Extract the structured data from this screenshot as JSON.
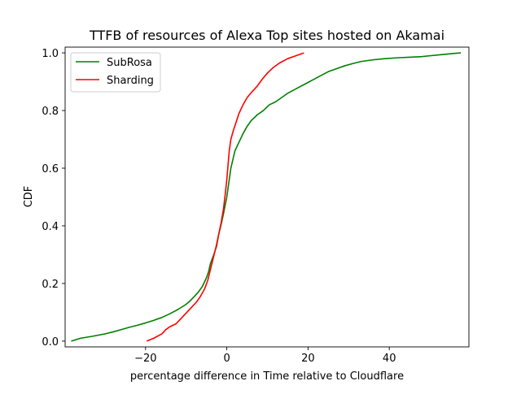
{
  "chart_data": {
    "type": "line",
    "title": "TTFB of resources of Alexa Top sites hosted on Akamai",
    "xlabel": "percentage difference in Time relative to Cloudflare",
    "ylabel": "CDF",
    "xlim": [
      -39.8,
      59.6
    ],
    "ylim": [
      -0.02,
      1.02
    ],
    "xticks": [
      -20,
      0,
      20,
      40
    ],
    "xtick_labels": [
      "−20",
      "0",
      "20",
      "40"
    ],
    "yticks": [
      0.0,
      0.2,
      0.4,
      0.6,
      0.8,
      1.0
    ],
    "ytick_labels": [
      "0.0",
      "0.2",
      "0.4",
      "0.6",
      "0.8",
      "1.0"
    ],
    "grid": false,
    "legend_position": "upper-left",
    "series": [
      {
        "name": "SubRosa",
        "color": "#008000",
        "points": [
          [
            -38.3,
            0.0
          ],
          [
            -36,
            0.01
          ],
          [
            -33,
            0.017
          ],
          [
            -30,
            0.025
          ],
          [
            -28,
            0.032
          ],
          [
            -26,
            0.04
          ],
          [
            -24,
            0.048
          ],
          [
            -22,
            0.055
          ],
          [
            -20,
            0.063
          ],
          [
            -18,
            0.072
          ],
          [
            -16,
            0.082
          ],
          [
            -14,
            0.095
          ],
          [
            -12,
            0.11
          ],
          [
            -10,
            0.128
          ],
          [
            -9,
            0.14
          ],
          [
            -8,
            0.155
          ],
          [
            -7,
            0.17
          ],
          [
            -6,
            0.19
          ],
          [
            -5,
            0.22
          ],
          [
            -4.5,
            0.24
          ],
          [
            -4,
            0.27
          ],
          [
            -3.2,
            0.3
          ],
          [
            -2.5,
            0.33
          ],
          [
            -2,
            0.37
          ],
          [
            -1.3,
            0.41
          ],
          [
            -0.7,
            0.45
          ],
          [
            0,
            0.5
          ],
          [
            0.5,
            0.55
          ],
          [
            1,
            0.6
          ],
          [
            1.5,
            0.63
          ],
          [
            2,
            0.66
          ],
          [
            3,
            0.69
          ],
          [
            4,
            0.72
          ],
          [
            5,
            0.745
          ],
          [
            6,
            0.765
          ],
          [
            7.5,
            0.785
          ],
          [
            9,
            0.8
          ],
          [
            10.5,
            0.82
          ],
          [
            12,
            0.83
          ],
          [
            13.5,
            0.845
          ],
          [
            15,
            0.86
          ],
          [
            17,
            0.875
          ],
          [
            19,
            0.89
          ],
          [
            21,
            0.905
          ],
          [
            23,
            0.92
          ],
          [
            25,
            0.935
          ],
          [
            27,
            0.945
          ],
          [
            29,
            0.955
          ],
          [
            31,
            0.963
          ],
          [
            33,
            0.97
          ],
          [
            36,
            0.976
          ],
          [
            39,
            0.98
          ],
          [
            42,
            0.983
          ],
          [
            45,
            0.985
          ],
          [
            48,
            0.987
          ],
          [
            50,
            0.99
          ],
          [
            53,
            0.994
          ],
          [
            55,
            0.997
          ],
          [
            57.6,
            1.0
          ]
        ]
      },
      {
        "name": "Sharding",
        "color": "#ff0000",
        "points": [
          [
            -19.7,
            0.0
          ],
          [
            -18,
            0.01
          ],
          [
            -16,
            0.025
          ],
          [
            -15,
            0.04
          ],
          [
            -14,
            0.05
          ],
          [
            -12.5,
            0.06
          ],
          [
            -11.5,
            0.075
          ],
          [
            -10.5,
            0.09
          ],
          [
            -9.5,
            0.105
          ],
          [
            -8.5,
            0.12
          ],
          [
            -7.5,
            0.135
          ],
          [
            -6.5,
            0.155
          ],
          [
            -5.5,
            0.18
          ],
          [
            -4.7,
            0.21
          ],
          [
            -4,
            0.25
          ],
          [
            -3.3,
            0.29
          ],
          [
            -2.6,
            0.33
          ],
          [
            -2,
            0.37
          ],
          [
            -1.4,
            0.41
          ],
          [
            -0.8,
            0.46
          ],
          [
            -0.3,
            0.52
          ],
          [
            0,
            0.56
          ],
          [
            0.3,
            0.61
          ],
          [
            0.6,
            0.66
          ],
          [
            1,
            0.7
          ],
          [
            1.6,
            0.73
          ],
          [
            2.3,
            0.76
          ],
          [
            3,
            0.79
          ],
          [
            4,
            0.82
          ],
          [
            5,
            0.845
          ],
          [
            6.2,
            0.865
          ],
          [
            7.5,
            0.885
          ],
          [
            8.8,
            0.91
          ],
          [
            10,
            0.93
          ],
          [
            11.5,
            0.95
          ],
          [
            13,
            0.965
          ],
          [
            15,
            0.98
          ],
          [
            17,
            0.99
          ],
          [
            19,
            1.0
          ]
        ]
      }
    ]
  }
}
